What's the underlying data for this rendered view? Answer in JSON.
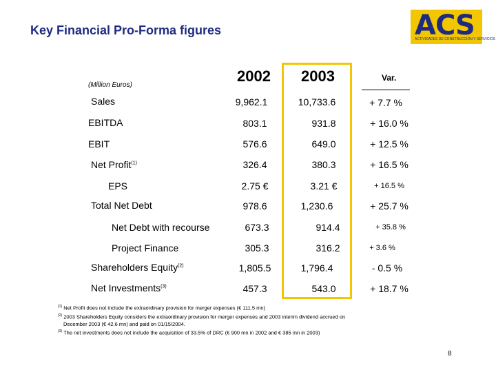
{
  "title": "Key Financial Pro-Forma figures",
  "logo": {
    "name": "ACS",
    "tagline": "ACTIVIDADES DE CONSTRUCCIÓN Y SERVICIOS"
  },
  "units": "(Million Euros)",
  "headers": {
    "y2002": "2002",
    "y2003": "2003",
    "var": "Var."
  },
  "rows": [
    {
      "label": "Sales",
      "sup": "",
      "v2002": "9,962.1",
      "v2003": "10,733.6",
      "var": "+ 7.7 %"
    },
    {
      "label": "EBITDA",
      "sup": "",
      "v2002": "803.1",
      "v2003": "931.8",
      "var": "+ 16.0 %"
    },
    {
      "label": "EBIT",
      "sup": "",
      "v2002": "576.6",
      "v2003": "649.0",
      "var": "+ 12.5 %"
    },
    {
      "label": "Net Profit",
      "sup": "(1)",
      "v2002": "326.4",
      "v2003": "380.3",
      "var": "+ 16.5 %"
    },
    {
      "label": "EPS",
      "sup": "",
      "v2002": "2.75 €",
      "v2003": "3.21 €",
      "var": "+ 16.5 %"
    },
    {
      "label": "Total Net Debt",
      "sup": "",
      "v2002": "978.6",
      "v2003": "1,230.6",
      "var": "+ 25.7 %"
    },
    {
      "label": "Net Debt with recourse",
      "sup": "",
      "v2002": "673.3",
      "v2003": "914.4",
      "var": "+ 35.8 %"
    },
    {
      "label": "Project Finance",
      "sup": "",
      "v2002": "305.3",
      "v2003": "316.2",
      "var": "+ 3.6 %"
    },
    {
      "label": "Shareholders Equity",
      "sup": "(2)",
      "v2002": "1,805.5",
      "v2003": "1,796.4",
      "var": "- 0.5 %"
    },
    {
      "label": "Net Investments",
      "sup": "(3)",
      "v2002": "457.3",
      "v2003": "543.0",
      "var": "+ 18.7 %"
    }
  ],
  "footnotes": [
    {
      "mark": "(1)",
      "text": "Net Profit does not include the extraordinary provision for merger expenses (€ 111.5 mn)"
    },
    {
      "mark": "(2)",
      "text": "2003 Shareholders Equity considers the extraordinary provision for merger expenses and 2003 interim dividend accrued on"
    },
    {
      "mark": "",
      "text": "December 2003 (€ 42.6 mn) and paid on 01/15/2004."
    },
    {
      "mark": "(3)",
      "text": "The net investments does not include the acquisition of 33.5% of DRC (€ 900 mn in 2002 and € 385 mn in 2003)"
    }
  ],
  "page_number": "8",
  "colors": {
    "title": "#1f2b80",
    "accent": "#f2c600"
  }
}
